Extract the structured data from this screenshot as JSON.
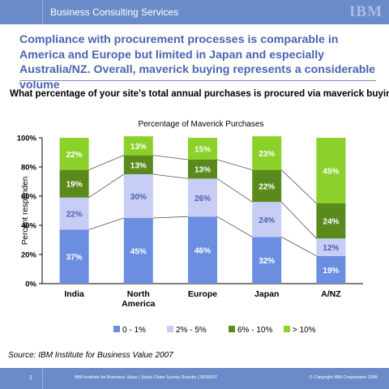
{
  "header": {
    "section_label": "Business Consulting Services",
    "logo_text": "IBM"
  },
  "headline": "Compliance with procurement processes is comparable in America and Europe but limited in Japan and especially Australia/NZ. Overall, maverick buying represents a considerable volume",
  "question": "What percentage of your site's total annual purchases is procured via maverick buying?",
  "source": "Source: IBM Institute for Business Value 2007",
  "footer": {
    "page_number": "1",
    "center_text": "IBM Institute for Business Value | Value Chain Survey Results | 05/30/07",
    "copyright": "© Copyright IBM Corporation 2005"
  },
  "colors": {
    "band": "#6b8bc8",
    "headline": "#4a64b0"
  },
  "chart_data": {
    "type": "bar",
    "stacked": true,
    "title": "Percentage of Maverick Purchases",
    "ylabel": "Percent responden",
    "xlabel": "",
    "ylim": [
      0,
      100
    ],
    "yticks": [
      "0%",
      "20%",
      "40%",
      "60%",
      "80%",
      "100%"
    ],
    "categories": [
      [
        "India"
      ],
      [
        "North",
        "America"
      ],
      [
        "Europe"
      ],
      [
        "Japan"
      ],
      [
        "A/NZ"
      ]
    ],
    "series": [
      {
        "name": "0 - 1%",
        "color": "#6b8ee0",
        "values": [
          37,
          45,
          46,
          32,
          19
        ]
      },
      {
        "name": "2% - 5%",
        "color": "#c8cdf5",
        "values": [
          22,
          30,
          26,
          24,
          12
        ]
      },
      {
        "name": "6% - 10%",
        "color": "#5a8a1c",
        "values": [
          19,
          13,
          13,
          22,
          24
        ]
      },
      {
        "name": "> 10%",
        "color": "#8bd12a",
        "values": [
          22,
          13,
          15,
          23,
          45
        ]
      }
    ],
    "data_labels": [
      [
        "37%",
        "45%",
        "46%",
        "32%",
        "19%"
      ],
      [
        "22%",
        "30%",
        "26%",
        "24%",
        "12%"
      ],
      [
        "19%",
        "13%",
        "13%",
        "22%",
        "24%"
      ],
      [
        "22%",
        "13%",
        "15%",
        "23%",
        "45%"
      ]
    ],
    "connector_lines": true,
    "legend_position": "bottom"
  }
}
